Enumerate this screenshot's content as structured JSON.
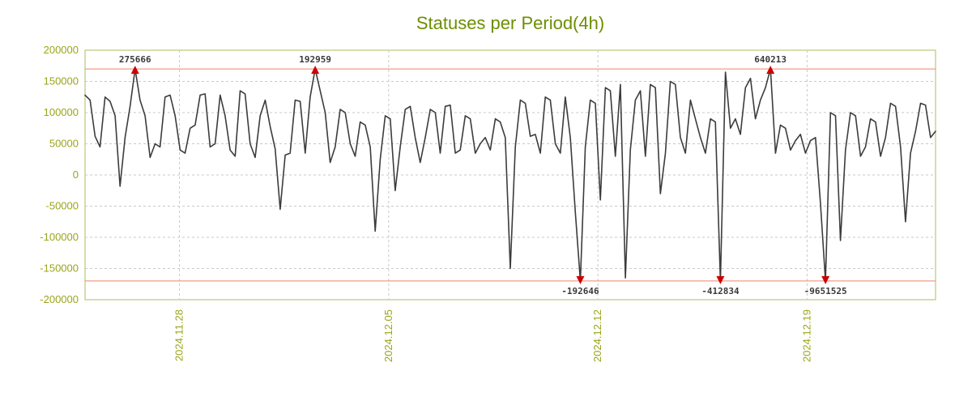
{
  "title": "Statuses per Period(4h)",
  "colors": {
    "title": "#6d8e00",
    "axis_labels": "#9aa51a",
    "plot_border": "#aabf5e",
    "grid": "#c9c9c9",
    "clip_line": "#f0836a",
    "series": "#3c3c3c",
    "marker": "#cc0000",
    "annotation_text": "#3a3a3a",
    "background": "#ffffff"
  },
  "chart_data": {
    "type": "line",
    "title": "Statuses per Period(4h)",
    "period_hours": 4,
    "ylim": [
      -200000,
      200000
    ],
    "y_ticks": [
      200000,
      150000,
      100000,
      50000,
      0,
      -50000,
      -100000,
      -150000,
      -200000
    ],
    "x_tick_labels": [
      "2024.11.28",
      "2024.12.05",
      "2024.12.12",
      "2024.12.19"
    ],
    "x_tick_positions": [
      0.111,
      0.357,
      0.603,
      0.849
    ],
    "clip_lines": [
      170000,
      -170000
    ],
    "grid": true,
    "legend": "none",
    "values": [
      128000,
      120000,
      62000,
      45000,
      125000,
      118000,
      95000,
      -18000,
      60000,
      110000,
      275666,
      120000,
      95000,
      28000,
      50000,
      45000,
      125000,
      128000,
      95000,
      40000,
      35000,
      75000,
      80000,
      128000,
      130000,
      45000,
      50000,
      128000,
      95000,
      40000,
      30000,
      135000,
      130000,
      50000,
      28000,
      95000,
      120000,
      78000,
      42000,
      -55000,
      32000,
      35000,
      120000,
      118000,
      35000,
      125000,
      192959,
      135000,
      100000,
      20000,
      45000,
      105000,
      100000,
      50000,
      30000,
      85000,
      80000,
      45000,
      -90000,
      25000,
      95000,
      90000,
      -25000,
      45000,
      105000,
      110000,
      60000,
      20000,
      60000,
      105000,
      100000,
      35000,
      110000,
      112000,
      35000,
      40000,
      95000,
      90000,
      35000,
      50000,
      60000,
      40000,
      90000,
      85000,
      60000,
      -150000,
      45000,
      120000,
      115000,
      62000,
      65000,
      35000,
      125000,
      120000,
      50000,
      35000,
      125000,
      60000,
      -60000,
      -192646,
      45000,
      120000,
      115000,
      -40000,
      140000,
      135000,
      30000,
      145000,
      -165000,
      40000,
      120000,
      135000,
      30000,
      145000,
      140000,
      -30000,
      35000,
      150000,
      145000,
      60000,
      35000,
      120000,
      90000,
      60000,
      35000,
      90000,
      85000,
      -412834,
      165000,
      75000,
      90000,
      65000,
      140000,
      155000,
      90000,
      120000,
      140000,
      640213,
      35000,
      80000,
      75000,
      40000,
      55000,
      65000,
      35000,
      55000,
      60000,
      -45000,
      -9651525,
      100000,
      95000,
      -105000,
      40000,
      100000,
      95000,
      30000,
      45000,
      90000,
      85000,
      30000,
      60000,
      115000,
      110000,
      45000,
      -75000,
      35000,
      70000,
      115000,
      112000,
      60000,
      70000
    ],
    "annotations": [
      {
        "index": 10,
        "value": 275666,
        "label": "275666",
        "dir": "up"
      },
      {
        "index": 46,
        "value": 192959,
        "label": "192959",
        "dir": "up"
      },
      {
        "index": 137,
        "value": 640213,
        "label": "640213",
        "dir": "up"
      },
      {
        "index": 99,
        "value": -192646,
        "label": "-192646",
        "dir": "down"
      },
      {
        "index": 127,
        "value": -412834,
        "label": "-412834",
        "dir": "down"
      },
      {
        "index": 148,
        "value": -9651525,
        "label": "-9651525",
        "dir": "down"
      }
    ]
  }
}
